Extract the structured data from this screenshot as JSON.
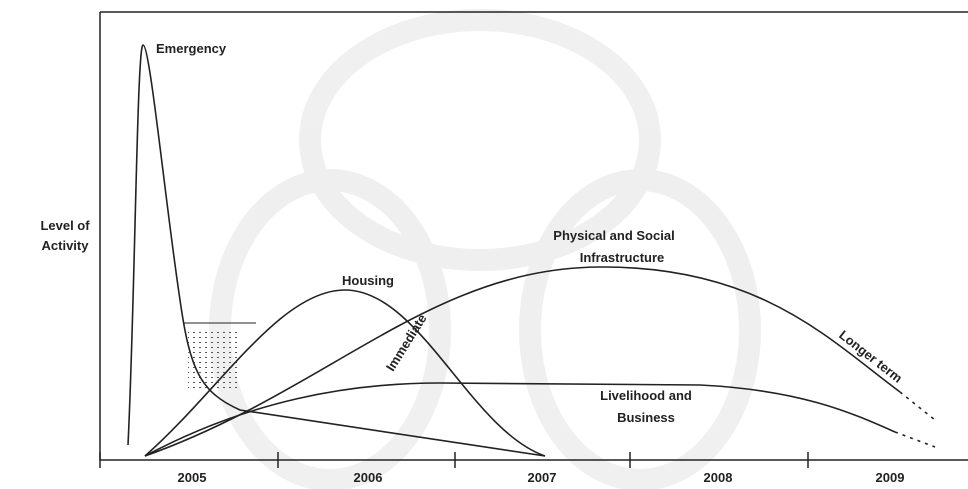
{
  "y_axis_label": [
    "Level of",
    "Activity"
  ],
  "x_axis": {
    "ticks": [
      "2005",
      "2006",
      "2007",
      "2008",
      "2009"
    ]
  },
  "curves": [
    {
      "label": [
        "Emergency"
      ]
    },
    {
      "label": [
        "Housing"
      ]
    },
    {
      "label": [
        "Physical and Social",
        "Infrastructure"
      ]
    },
    {
      "label": [
        "Livelihood and",
        "Business"
      ]
    }
  ],
  "annotations": {
    "immediate": "Immediate",
    "longer_term": "Longer term"
  }
}
